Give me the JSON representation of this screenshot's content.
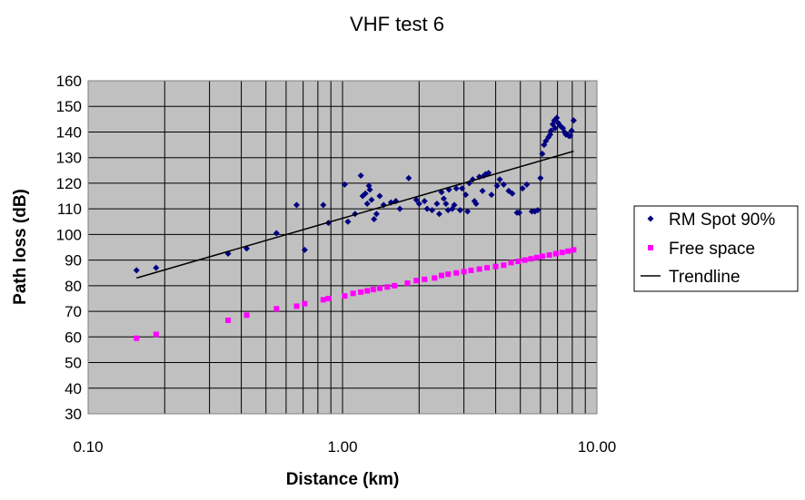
{
  "chart_data": {
    "type": "scatter",
    "title": "VHF test 6",
    "xlabel": "Distance (km)",
    "ylabel": "Path loss (dB)",
    "xscale": "log",
    "xlim": [
      0.1,
      10
    ],
    "ylim": [
      30,
      160
    ],
    "xticks": [
      "0.10",
      "1.00",
      "10.00"
    ],
    "yticks": [
      30,
      40,
      50,
      60,
      70,
      80,
      90,
      100,
      110,
      120,
      130,
      140,
      150,
      160
    ],
    "grid": true,
    "plot_background": "#c0c0c0",
    "legend_position": "right",
    "series": [
      {
        "name": "RM Spot 90%",
        "kind": "scatter",
        "marker": "diamond",
        "color": "#000080",
        "points": [
          [
            0.155,
            86
          ],
          [
            0.185,
            87
          ],
          [
            0.355,
            92.5
          ],
          [
            0.42,
            94.5
          ],
          [
            0.55,
            100.5
          ],
          [
            0.66,
            111.5
          ],
          [
            0.71,
            94
          ],
          [
            0.84,
            111.5
          ],
          [
            0.88,
            104.5
          ],
          [
            1.02,
            119.5
          ],
          [
            1.05,
            105
          ],
          [
            1.12,
            108
          ],
          [
            1.18,
            123
          ],
          [
            1.2,
            115
          ],
          [
            1.23,
            116
          ],
          [
            1.25,
            112
          ],
          [
            1.27,
            119
          ],
          [
            1.28,
            117.5
          ],
          [
            1.3,
            113.5
          ],
          [
            1.33,
            106
          ],
          [
            1.36,
            108
          ],
          [
            1.4,
            115
          ],
          [
            1.45,
            111.5
          ],
          [
            1.55,
            112.5
          ],
          [
            1.62,
            113
          ],
          [
            1.68,
            110
          ],
          [
            1.82,
            122
          ],
          [
            1.95,
            113.5
          ],
          [
            2.0,
            112
          ],
          [
            2.1,
            113
          ],
          [
            2.15,
            110
          ],
          [
            2.25,
            109.5
          ],
          [
            2.35,
            112
          ],
          [
            2.4,
            108
          ],
          [
            2.45,
            116.5
          ],
          [
            2.5,
            114
          ],
          [
            2.55,
            112
          ],
          [
            2.6,
            109.5
          ],
          [
            2.62,
            117.5
          ],
          [
            2.7,
            110
          ],
          [
            2.75,
            111.5
          ],
          [
            2.8,
            118
          ],
          [
            2.9,
            109.5
          ],
          [
            2.95,
            118
          ],
          [
            3.05,
            115.5
          ],
          [
            3.1,
            109
          ],
          [
            3.15,
            120
          ],
          [
            3.25,
            121.5
          ],
          [
            3.3,
            113
          ],
          [
            3.35,
            112
          ],
          [
            3.45,
            122.5
          ],
          [
            3.55,
            117
          ],
          [
            3.6,
            123
          ],
          [
            3.65,
            123.5
          ],
          [
            3.75,
            124
          ],
          [
            3.85,
            115.5
          ],
          [
            4.05,
            119
          ],
          [
            4.15,
            121.5
          ],
          [
            4.3,
            119.5
          ],
          [
            4.5,
            117
          ],
          [
            4.65,
            116
          ],
          [
            4.85,
            108.5
          ],
          [
            4.95,
            108.5
          ],
          [
            5.1,
            118
          ],
          [
            5.3,
            119.5
          ],
          [
            5.55,
            109
          ],
          [
            5.7,
            109
          ],
          [
            5.85,
            109.5
          ],
          [
            6.0,
            122
          ],
          [
            6.1,
            131.5
          ],
          [
            6.2,
            135
          ],
          [
            6.3,
            136.5
          ],
          [
            6.45,
            138
          ],
          [
            6.55,
            139
          ],
          [
            6.6,
            140.5
          ],
          [
            6.7,
            143
          ],
          [
            6.8,
            144.5
          ],
          [
            6.85,
            141.5
          ],
          [
            6.95,
            145.5
          ],
          [
            7.05,
            143.5
          ],
          [
            7.15,
            142.5
          ],
          [
            7.25,
            142
          ],
          [
            7.35,
            141.5
          ],
          [
            7.45,
            140
          ],
          [
            7.55,
            139
          ],
          [
            7.65,
            139
          ],
          [
            7.75,
            138.5
          ],
          [
            7.85,
            138.5
          ],
          [
            7.95,
            140.5
          ],
          [
            8.1,
            144.5
          ]
        ]
      },
      {
        "name": "Free space",
        "kind": "scatter",
        "marker": "square",
        "color": "#ff00ff",
        "points": [
          [
            0.155,
            59.5
          ],
          [
            0.185,
            61
          ],
          [
            0.355,
            66.5
          ],
          [
            0.42,
            68.5
          ],
          [
            0.55,
            71
          ],
          [
            0.66,
            72
          ],
          [
            0.71,
            73
          ],
          [
            0.84,
            74.5
          ],
          [
            0.88,
            75
          ],
          [
            1.02,
            76
          ],
          [
            1.1,
            77
          ],
          [
            1.18,
            77.5
          ],
          [
            1.25,
            78
          ],
          [
            1.32,
            78.5
          ],
          [
            1.4,
            79
          ],
          [
            1.5,
            79.5
          ],
          [
            1.6,
            80
          ],
          [
            1.8,
            81
          ],
          [
            1.95,
            82
          ],
          [
            2.1,
            82.5
          ],
          [
            2.3,
            83
          ],
          [
            2.45,
            84
          ],
          [
            2.6,
            84.5
          ],
          [
            2.8,
            85
          ],
          [
            3.0,
            85.5
          ],
          [
            3.2,
            86
          ],
          [
            3.45,
            86.5
          ],
          [
            3.7,
            87
          ],
          [
            4.0,
            87.5
          ],
          [
            4.3,
            88
          ],
          [
            4.6,
            89
          ],
          [
            4.9,
            89.5
          ],
          [
            5.2,
            90
          ],
          [
            5.5,
            90.5
          ],
          [
            5.8,
            91
          ],
          [
            6.1,
            91.5
          ],
          [
            6.5,
            92
          ],
          [
            6.9,
            92.5
          ],
          [
            7.3,
            93
          ],
          [
            7.7,
            93.5
          ],
          [
            8.1,
            94
          ]
        ]
      },
      {
        "name": "Trendline",
        "kind": "line",
        "color": "#000000",
        "points": [
          [
            0.155,
            83
          ],
          [
            8.1,
            132.5
          ]
        ]
      }
    ]
  }
}
